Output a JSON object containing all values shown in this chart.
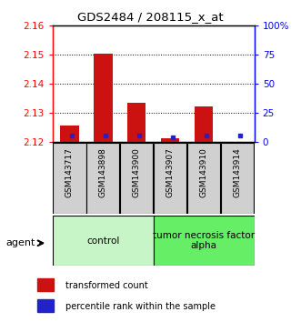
{
  "title": "GDS2484 / 208115_x_at",
  "samples": [
    "GSM143717",
    "GSM143898",
    "GSM143900",
    "GSM143907",
    "GSM143910",
    "GSM143914"
  ],
  "red_values": [
    2.1255,
    2.1503,
    2.1335,
    2.1213,
    2.1323,
    2.12
  ],
  "red_base": 2.12,
  "ylim": [
    2.12,
    2.16
  ],
  "yticks_left": [
    2.12,
    2.13,
    2.14,
    2.15,
    2.16
  ],
  "yticks_right": [
    0,
    25,
    50,
    75,
    100
  ],
  "yticks_right_labels": [
    "0",
    "25",
    "50",
    "75",
    "100%"
  ],
  "group1_label": "control",
  "group2_label": "tumor necrosis factor\nalpha",
  "group1_color": "#c8f5c8",
  "group2_color": "#66ee66",
  "agent_label": "agent",
  "legend_red": "transformed count",
  "legend_blue": "percentile rank within the sample",
  "red_color": "#cc1111",
  "blue_color": "#2222cc",
  "blue_pct": [
    5,
    5,
    5,
    4,
    5,
    5
  ],
  "gray_box_color": "#d0d0d0",
  "figsize": [
    3.31,
    3.54
  ],
  "dpi": 100
}
